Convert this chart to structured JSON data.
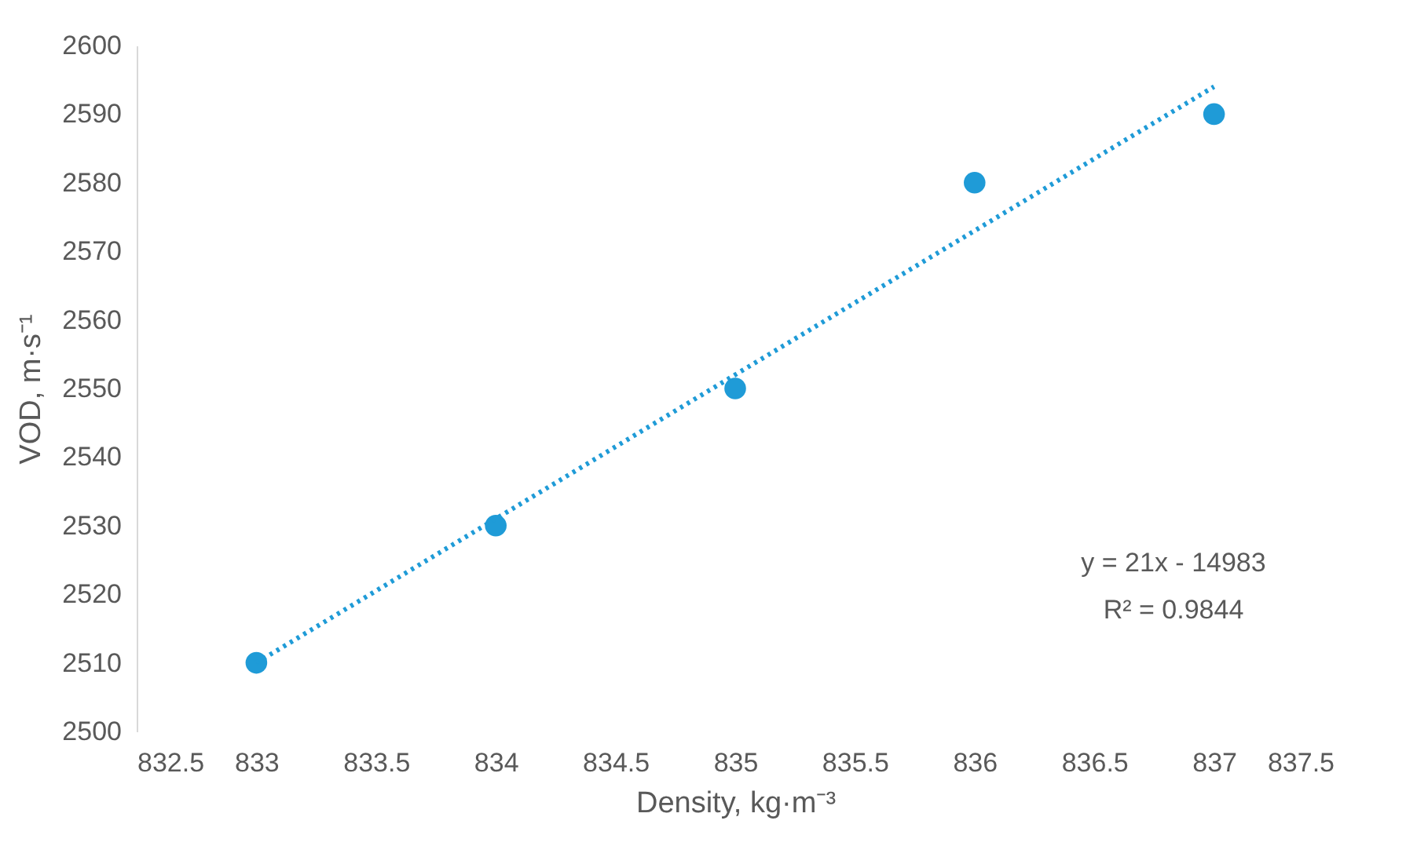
{
  "chart_data": {
    "type": "scatter",
    "xlabel": "Density, kg·m⁻³",
    "ylabel": "VOD, m·s⁻¹",
    "x": [
      833,
      834,
      835,
      836,
      837
    ],
    "series": [
      {
        "type": "scatter",
        "color": "#1f9bd7",
        "values": [
          2510,
          2530,
          2550,
          2580,
          2590
        ]
      },
      {
        "type": "line",
        "color": "#1f9bd7",
        "line_style": "dotted",
        "marker": "none",
        "x": [
          833,
          837
        ],
        "values": [
          2510,
          2594
        ]
      }
    ],
    "marker": "circle",
    "xlim": [
      832.5,
      837.5
    ],
    "xticks": [
      832.5,
      833,
      833.5,
      834,
      834.5,
      835,
      835.5,
      836,
      836.5,
      837,
      837.5
    ],
    "ylim": [
      2500,
      2600
    ],
    "yticks": [
      2500,
      2510,
      2520,
      2530,
      2540,
      2550,
      2560,
      2570,
      2580,
      2590,
      2600
    ],
    "annotations": [
      "y = 21x - 14983",
      "R² = 0.9844"
    ],
    "grid": false
  }
}
